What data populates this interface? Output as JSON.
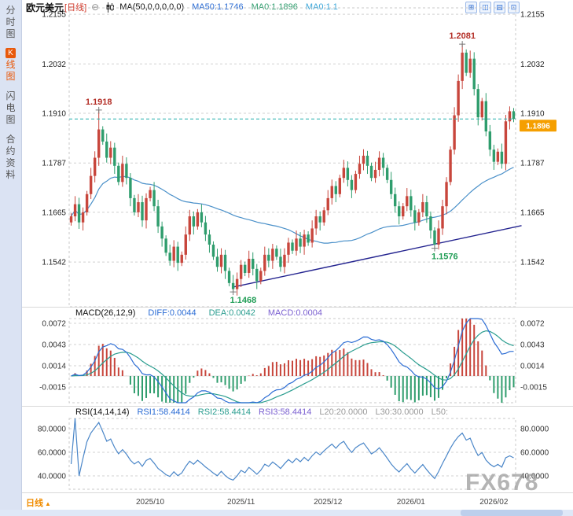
{
  "sidebar": {
    "items": [
      {
        "label": "分时图"
      },
      {
        "badge": "K",
        "label": "线图"
      },
      {
        "label": "闪电图"
      },
      {
        "label": "合约资料"
      }
    ]
  },
  "header": {
    "symbol": "欧元美元",
    "timeframe": "[日线]",
    "collapse_glyph": "⊖",
    "ma_label": "MA(50,0,0,0,0,0)",
    "ma50": "MA50:1.1746",
    "ma0_a": "MA0:1.1896",
    "ma0_b": "MA0:1.1"
  },
  "toolbar": {
    "icons": [
      {
        "glyph": "⊞"
      },
      {
        "glyph": "◫"
      },
      {
        "glyph": "▤"
      },
      {
        "glyph": "⊡"
      }
    ]
  },
  "macd_header": {
    "label": "MACD(26,12,9)",
    "diff": "DIFF:0.0044",
    "dea": "DEA:0.0042",
    "macd": "MACD:0.0004"
  },
  "rsi_header": {
    "label": "RSI(14,14,14)",
    "rsi1": "RSI1:58.4414",
    "rsi2": "RSI2:58.4414",
    "rsi3": "RSI3:58.4414",
    "l20": "L20:20.0000",
    "l30": "L30:30.0000",
    "l50": "L50:"
  },
  "bottom": {
    "timeframe": "日线",
    "arrow": "▲"
  },
  "watermark": "FX678",
  "chart_data": {
    "type": "candlestick",
    "title": "欧元美元 日线",
    "price_axis_ticks": [
      "1.2155",
      "1.2032",
      "1.1910",
      "1.1787",
      "1.1665",
      "1.1542"
    ],
    "macd_axis_ticks": [
      "0.0072",
      "0.0043",
      "0.0014",
      "-0.0015"
    ],
    "rsi_axis_ticks": [
      "80.0000",
      "60.0000",
      "40.0000"
    ],
    "x_axis_ticks": [
      {
        "label": "2025/10",
        "index": 20
      },
      {
        "label": "2025/11",
        "index": 43
      },
      {
        "label": "2025/12",
        "index": 65
      },
      {
        "label": "2026/01",
        "index": 86
      },
      {
        "label": "2026/02",
        "index": 107
      }
    ],
    "current_price": "1.1896",
    "closes": [
      1.1655,
      1.1685,
      1.164,
      1.1665,
      1.171,
      1.1755,
      1.18,
      1.187,
      1.184,
      1.18,
      1.1825,
      1.178,
      1.174,
      1.1785,
      1.175,
      1.17,
      1.1665,
      1.169,
      1.1645,
      1.17,
      1.172,
      1.168,
      1.163,
      1.16,
      1.1565,
      1.1545,
      1.158,
      1.154,
      1.156,
      1.161,
      1.1655,
      1.163,
      1.1665,
      1.164,
      1.161,
      1.1585,
      1.1555,
      1.153,
      1.156,
      1.152,
      1.149,
      1.1475,
      1.15,
      1.1535,
      1.1515,
      1.155,
      1.1525,
      1.1495,
      1.152,
      1.156,
      1.1545,
      1.1575,
      1.1555,
      1.153,
      1.156,
      1.159,
      1.157,
      1.16,
      1.158,
      1.161,
      1.159,
      1.1625,
      1.1655,
      1.164,
      1.167,
      1.17,
      1.173,
      1.171,
      1.175,
      1.1775,
      1.1745,
      1.172,
      1.176,
      1.1785,
      1.1805,
      1.178,
      1.175,
      1.177,
      1.18,
      1.1775,
      1.1745,
      1.171,
      1.168,
      1.1655,
      1.168,
      1.1705,
      1.167,
      1.164,
      1.1665,
      1.169,
      1.1655,
      1.162,
      1.1585,
      1.1625,
      1.168,
      1.174,
      1.182,
      1.1905,
      1.199,
      1.206,
      1.201,
      1.2045,
      1.197,
      1.19,
      1.194,
      1.1865,
      1.182,
      1.179,
      1.1815,
      1.1785,
      1.189,
      1.1915,
      1.1896
    ],
    "key_points": [
      {
        "index": 7,
        "price": 1.1918,
        "label": "1.1918",
        "kind": "high"
      },
      {
        "index": 41,
        "price": 1.1468,
        "label": "1.1468",
        "kind": "low"
      },
      {
        "index": 92,
        "price": 1.1576,
        "label": "1.1576",
        "kind": "low"
      },
      {
        "index": 99,
        "price": 1.2081,
        "label": "1.2081",
        "kind": "high"
      }
    ],
    "trendline": {
      "from_index": 41,
      "from_price": 1.148,
      "to_index": 114,
      "to_price": 1.1632
    },
    "indicators": {
      "ma_period": 50,
      "macd": [
        26,
        12,
        9
      ],
      "rsi_period": 14
    },
    "colors": {
      "up": "#c8463c",
      "down": "#2f9d6d",
      "ma": "#4a90c9",
      "diff": "#2b6cd4",
      "dea": "#2a9d8f",
      "trend": "#23238f",
      "current_line": "#27b0ae",
      "badge_bg": "#f59f00",
      "high_label": "#b43028",
      "low_label": "#1f9d55"
    }
  }
}
